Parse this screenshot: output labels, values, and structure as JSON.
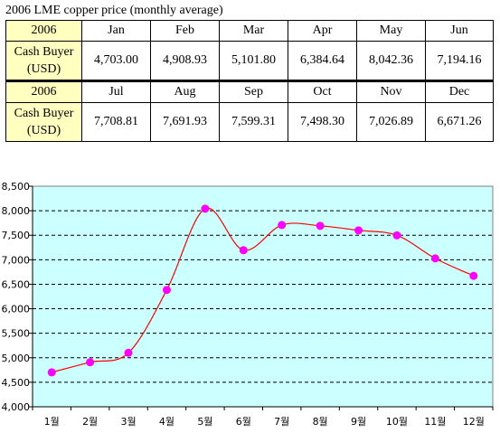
{
  "title": "2006 LME copper price (monthly average)",
  "table": {
    "rows": [
      {
        "year": "2006",
        "row_label_line1": "Cash Buyer",
        "row_label_line2": "(USD)",
        "months": [
          "Jan",
          "Feb",
          "Mar",
          "Apr",
          "May",
          "Jun"
        ],
        "prices": [
          "4,703.00",
          "4,908.93",
          "5,101.80",
          "6,384.64",
          "8,042.36",
          "7,194.16"
        ]
      },
      {
        "year": "2006",
        "row_label_line1": "Cash Buyer",
        "row_label_line2": "(USD)",
        "months": [
          "Jul",
          "Aug",
          "Sep",
          "Oct",
          "Nov",
          "Dec"
        ],
        "prices": [
          "7,708.81",
          "7,691.93",
          "7,599.31",
          "7,498.30",
          "7,026.89",
          "6,671.26"
        ]
      }
    ]
  },
  "chart_data": {
    "type": "line",
    "categories": [
      "1월",
      "2월",
      "3월",
      "4월",
      "5월",
      "6월",
      "7월",
      "8월",
      "9월",
      "10월",
      "11월",
      "12월"
    ],
    "series": [
      {
        "values": [
          4703.0,
          4908.93,
          5101.8,
          6384.64,
          8042.36,
          7194.16,
          7708.81,
          7691.93,
          7599.31,
          7498.3,
          7026.89,
          6671.26
        ]
      }
    ],
    "yticks": [
      "4,000",
      "4,500",
      "5,000",
      "5,500",
      "6,000",
      "6,500",
      "7,000",
      "7,500",
      "8,000",
      "8,500"
    ],
    "ylim": [
      4000,
      8500
    ],
    "ystep": 500,
    "grid": true,
    "line_color": "#ff0000",
    "marker_color": "#ff00ff",
    "plot_bg": "#ccffff"
  }
}
